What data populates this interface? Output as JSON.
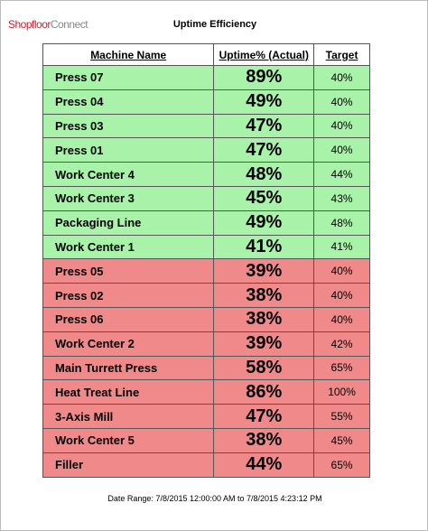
{
  "header": {
    "logo_main": "Shopfloor",
    "logo_sub": "Connect",
    "title": "Uptime Efficiency"
  },
  "table": {
    "columns": [
      "Machine Name",
      "Uptime% (Actual)",
      "Target"
    ],
    "rows": [
      {
        "cells": [
          "Press 07",
          "89%",
          "40%"
        ],
        "color": "#a9f2a9"
      },
      {
        "cells": [
          "Press 04",
          "49%",
          "40%"
        ],
        "color": "#a9f2a9"
      },
      {
        "cells": [
          "Press 03",
          "47%",
          "40%"
        ],
        "color": "#a9f2a9"
      },
      {
        "cells": [
          "Press 01",
          "47%",
          "40%"
        ],
        "color": "#a9f2a9"
      },
      {
        "cells": [
          "Work Center 4",
          "48%",
          "44%"
        ],
        "color": "#a9f2a9"
      },
      {
        "cells": [
          "Work Center 3",
          "45%",
          "43%"
        ],
        "color": "#a9f2a9"
      },
      {
        "cells": [
          "Packaging Line",
          "49%",
          "48%"
        ],
        "color": "#a9f2a9"
      },
      {
        "cells": [
          "Work Center 1",
          "41%",
          "41%"
        ],
        "color": "#a9f2a9"
      },
      {
        "cells": [
          "Press 05",
          "39%",
          "40%"
        ],
        "color": "#f08a8a"
      },
      {
        "cells": [
          "Press 02",
          "38%",
          "40%"
        ],
        "color": "#f08a8a"
      },
      {
        "cells": [
          "Press 06",
          "38%",
          "40%"
        ],
        "color": "#f08a8a"
      },
      {
        "cells": [
          "Work Center 2",
          "39%",
          "42%"
        ],
        "color": "#f08a8a"
      },
      {
        "cells": [
          "Main Turrett Press",
          "58%",
          "65%"
        ],
        "color": "#f08a8a"
      },
      {
        "cells": [
          "Heat Treat Line",
          "86%",
          "100%"
        ],
        "color": "#f08a8a"
      },
      {
        "cells": [
          "3-Axis Mill",
          "47%",
          "55%"
        ],
        "color": "#f08a8a"
      },
      {
        "cells": [
          "Work Center 5",
          "38%",
          "45%"
        ],
        "color": "#f08a8a"
      },
      {
        "cells": [
          "Filler",
          "44%",
          "65%"
        ],
        "color": "#f08a8a"
      }
    ]
  },
  "footer": {
    "date_range": "Date Range: 7/8/2015 12:00:00 AM to 7/8/2015 4:23:12 PM"
  }
}
